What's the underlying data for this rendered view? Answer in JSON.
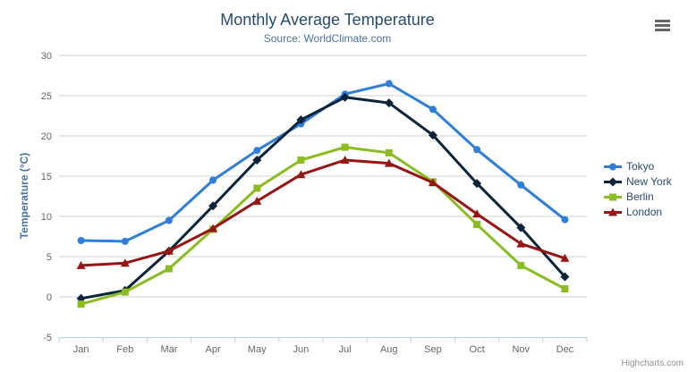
{
  "chart_data": {
    "type": "line",
    "title": "Monthly Average Temperature",
    "subtitle": "Source: WorldClimate.com",
    "xlabel": "",
    "ylabel": "Temperature (°C)",
    "ylim": [
      -5,
      30
    ],
    "ytick_step": 5,
    "ytick_labels": [
      "-5",
      "0",
      "5",
      "10",
      "15",
      "20",
      "25",
      "30"
    ],
    "grid": "horizontal",
    "legend_position": "right-middle-vertical",
    "categories": [
      "Jan",
      "Feb",
      "Mar",
      "Apr",
      "May",
      "Jun",
      "Jul",
      "Aug",
      "Sep",
      "Oct",
      "Nov",
      "Dec"
    ],
    "series": [
      {
        "id": "tokyo",
        "name": "Tokyo",
        "color": "#2f7ed8",
        "marker": "circle",
        "values": [
          7.0,
          6.9,
          9.5,
          14.5,
          18.2,
          21.5,
          25.2,
          26.5,
          23.3,
          18.3,
          13.9,
          9.6
        ]
      },
      {
        "id": "new-york",
        "name": "New York",
        "color": "#0d233a",
        "marker": "diamond",
        "values": [
          -0.2,
          0.8,
          5.7,
          11.3,
          17.0,
          22.0,
          24.8,
          24.1,
          20.1,
          14.1,
          8.6,
          2.5
        ]
      },
      {
        "id": "berlin",
        "name": "Berlin",
        "color": "#8bbc21",
        "marker": "square",
        "values": [
          -0.9,
          0.6,
          3.5,
          8.4,
          13.5,
          17.0,
          18.6,
          17.9,
          14.3,
          9.0,
          3.9,
          1.0
        ]
      },
      {
        "id": "london",
        "name": "London",
        "color": "#961414",
        "marker": "triangle",
        "values": [
          3.9,
          4.2,
          5.7,
          8.5,
          11.9,
          15.2,
          17.0,
          16.6,
          14.2,
          10.3,
          6.6,
          4.8
        ]
      }
    ],
    "style_colors": {
      "title": "#274b6d",
      "subtitle": "#4d759e",
      "axis_title": "#4572a7",
      "tick_label": "#666666",
      "gridline": "#cfcfcf",
      "axis_line": "#c0d0e0",
      "legend_text": "#274b6d",
      "credits_text": "#909090",
      "menu_icon": "#666666"
    }
  },
  "credits": {
    "label": "Highcharts.com"
  },
  "context_menu": {
    "icon": "hamburger-menu-icon"
  }
}
